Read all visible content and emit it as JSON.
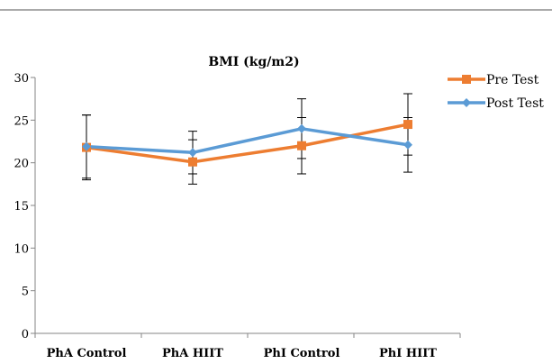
{
  "chart_data": {
    "type": "line",
    "title": "BMI (kg/m2)",
    "categories": [
      "PhA Control",
      "PhA HIIT",
      "PhI Control",
      "PhI HIIT"
    ],
    "ylim": [
      0,
      30
    ],
    "yticks": [
      0,
      5,
      10,
      15,
      20,
      25,
      30
    ],
    "ytick_labels": [
      "0",
      "5",
      "10",
      "15",
      "20",
      "25",
      "30"
    ],
    "grid": false,
    "legend_position": "right",
    "series": [
      {
        "name": "Pre Test",
        "color": "#ED7D31",
        "marker": "square",
        "values": [
          21.8,
          20.1,
          22.0,
          24.5
        ],
        "error": [
          3.8,
          2.6,
          3.3,
          3.6
        ]
      },
      {
        "name": "Post Test",
        "color": "#5B9BD5",
        "marker": "diamond",
        "values": [
          21.9,
          21.2,
          24.0,
          22.1
        ],
        "error": [
          3.7,
          2.5,
          3.5,
          3.2
        ]
      }
    ]
  }
}
